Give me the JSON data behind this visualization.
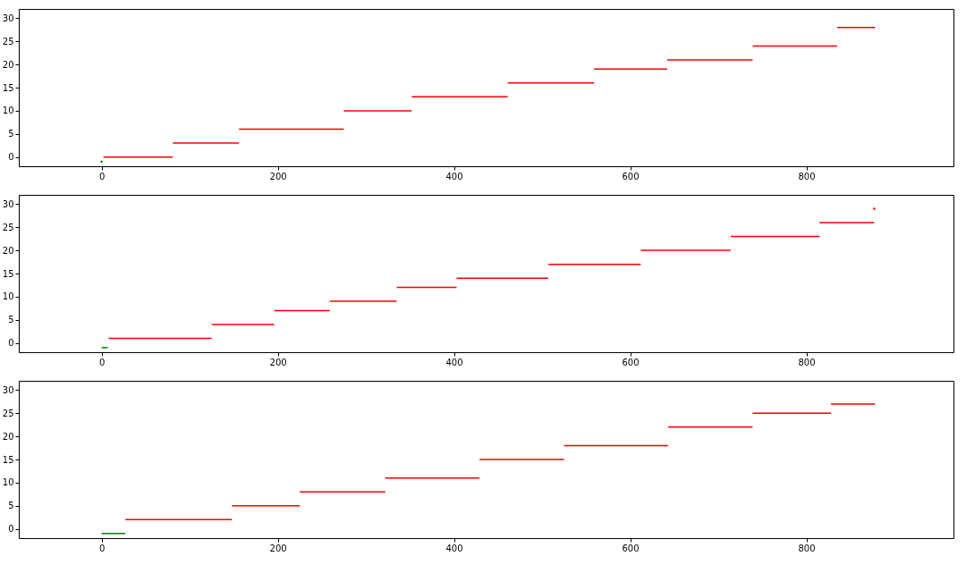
{
  "chart_data": [
    {
      "type": "line",
      "xlim": [
        -94,
        967
      ],
      "ylim": [
        -2,
        32
      ],
      "xticks": [
        0,
        200,
        400,
        600,
        800
      ],
      "yticks": [
        0,
        5,
        10,
        15,
        20,
        25,
        30
      ],
      "series": [
        {
          "type": "scatter",
          "color": "#008000",
          "x": [
            0
          ],
          "values": [
            -1
          ]
        },
        {
          "color": "#ff0000",
          "x": [
            2,
            81
          ],
          "values": [
            0,
            0
          ]
        },
        {
          "color": "#ff0000",
          "x": [
            81,
            156
          ],
          "values": [
            3,
            3
          ]
        },
        {
          "color": "#ff0000",
          "x": [
            156,
            275
          ],
          "values": [
            6,
            6
          ]
        },
        {
          "color": "#ff0000",
          "x": [
            275,
            352
          ],
          "values": [
            10,
            10
          ]
        },
        {
          "color": "#ff0000",
          "x": [
            352,
            461
          ],
          "values": [
            13,
            13
          ]
        },
        {
          "color": "#ff0000",
          "x": [
            461,
            559
          ],
          "values": [
            16,
            16
          ]
        },
        {
          "color": "#ff0000",
          "x": [
            559,
            642
          ],
          "values": [
            19,
            19
          ]
        },
        {
          "color": "#ff0000",
          "x": [
            642,
            739
          ],
          "values": [
            21,
            21
          ]
        },
        {
          "color": "#ff0000",
          "x": [
            739,
            835
          ],
          "values": [
            24,
            24
          ]
        },
        {
          "color": "#ff0000",
          "x": [
            835,
            878
          ],
          "values": [
            28,
            28
          ]
        }
      ]
    },
    {
      "type": "line",
      "xlim": [
        -94,
        967
      ],
      "ylim": [
        -2,
        32
      ],
      "xticks": [
        0,
        200,
        400,
        600,
        800
      ],
      "yticks": [
        0,
        5,
        10,
        15,
        20,
        25,
        30
      ],
      "series": [
        {
          "color": "#008000",
          "x": [
            0,
            7
          ],
          "values": [
            -1,
            -1
          ]
        },
        {
          "color": "#ff0000",
          "x": [
            8,
            125
          ],
          "values": [
            1,
            1
          ]
        },
        {
          "color": "#ff0000",
          "x": [
            125,
            196
          ],
          "values": [
            4,
            4
          ]
        },
        {
          "color": "#ff0000",
          "x": [
            196,
            259
          ],
          "values": [
            7,
            7
          ]
        },
        {
          "color": "#ff0000",
          "x": [
            259,
            335
          ],
          "values": [
            9,
            9
          ]
        },
        {
          "color": "#ff0000",
          "x": [
            335,
            403
          ],
          "values": [
            12,
            12
          ]
        },
        {
          "color": "#ff0000",
          "x": [
            403,
            507
          ],
          "values": [
            14,
            14
          ]
        },
        {
          "color": "#ff0000",
          "x": [
            507,
            612
          ],
          "values": [
            17,
            17
          ]
        },
        {
          "color": "#ff0000",
          "x": [
            612,
            714
          ],
          "values": [
            20,
            20
          ]
        },
        {
          "color": "#ff0000",
          "x": [
            714,
            815
          ],
          "values": [
            23,
            23
          ]
        },
        {
          "color": "#ff0000",
          "x": [
            815,
            877
          ],
          "values": [
            26,
            26
          ]
        },
        {
          "type": "scatter",
          "color": "#ff0000",
          "x": [
            877
          ],
          "values": [
            29
          ]
        }
      ]
    },
    {
      "type": "line",
      "xlim": [
        -94,
        967
      ],
      "ylim": [
        -2,
        32
      ],
      "xticks": [
        0,
        200,
        400,
        600,
        800
      ],
      "yticks": [
        0,
        5,
        10,
        15,
        20,
        25,
        30
      ],
      "series": [
        {
          "color": "#008000",
          "x": [
            0,
            27
          ],
          "values": [
            -1,
            -1
          ]
        },
        {
          "color": "#ff0000",
          "x": [
            27,
            148
          ],
          "values": [
            2,
            2
          ]
        },
        {
          "color": "#ff0000",
          "x": [
            148,
            225
          ],
          "values": [
            5,
            5
          ]
        },
        {
          "color": "#ff0000",
          "x": [
            225,
            322
          ],
          "values": [
            8,
            8
          ]
        },
        {
          "color": "#ff0000",
          "x": [
            322,
            429
          ],
          "values": [
            11,
            11
          ]
        },
        {
          "color": "#ff0000",
          "x": [
            429,
            525
          ],
          "values": [
            15,
            15
          ]
        },
        {
          "color": "#ff0000",
          "x": [
            525,
            643
          ],
          "values": [
            18,
            18
          ]
        },
        {
          "color": "#ff0000",
          "x": [
            643,
            739
          ],
          "values": [
            22,
            22
          ]
        },
        {
          "color": "#ff0000",
          "x": [
            739,
            828
          ],
          "values": [
            25,
            25
          ]
        },
        {
          "color": "#ff0000",
          "x": [
            828,
            878
          ],
          "values": [
            27,
            27
          ]
        }
      ]
    }
  ]
}
